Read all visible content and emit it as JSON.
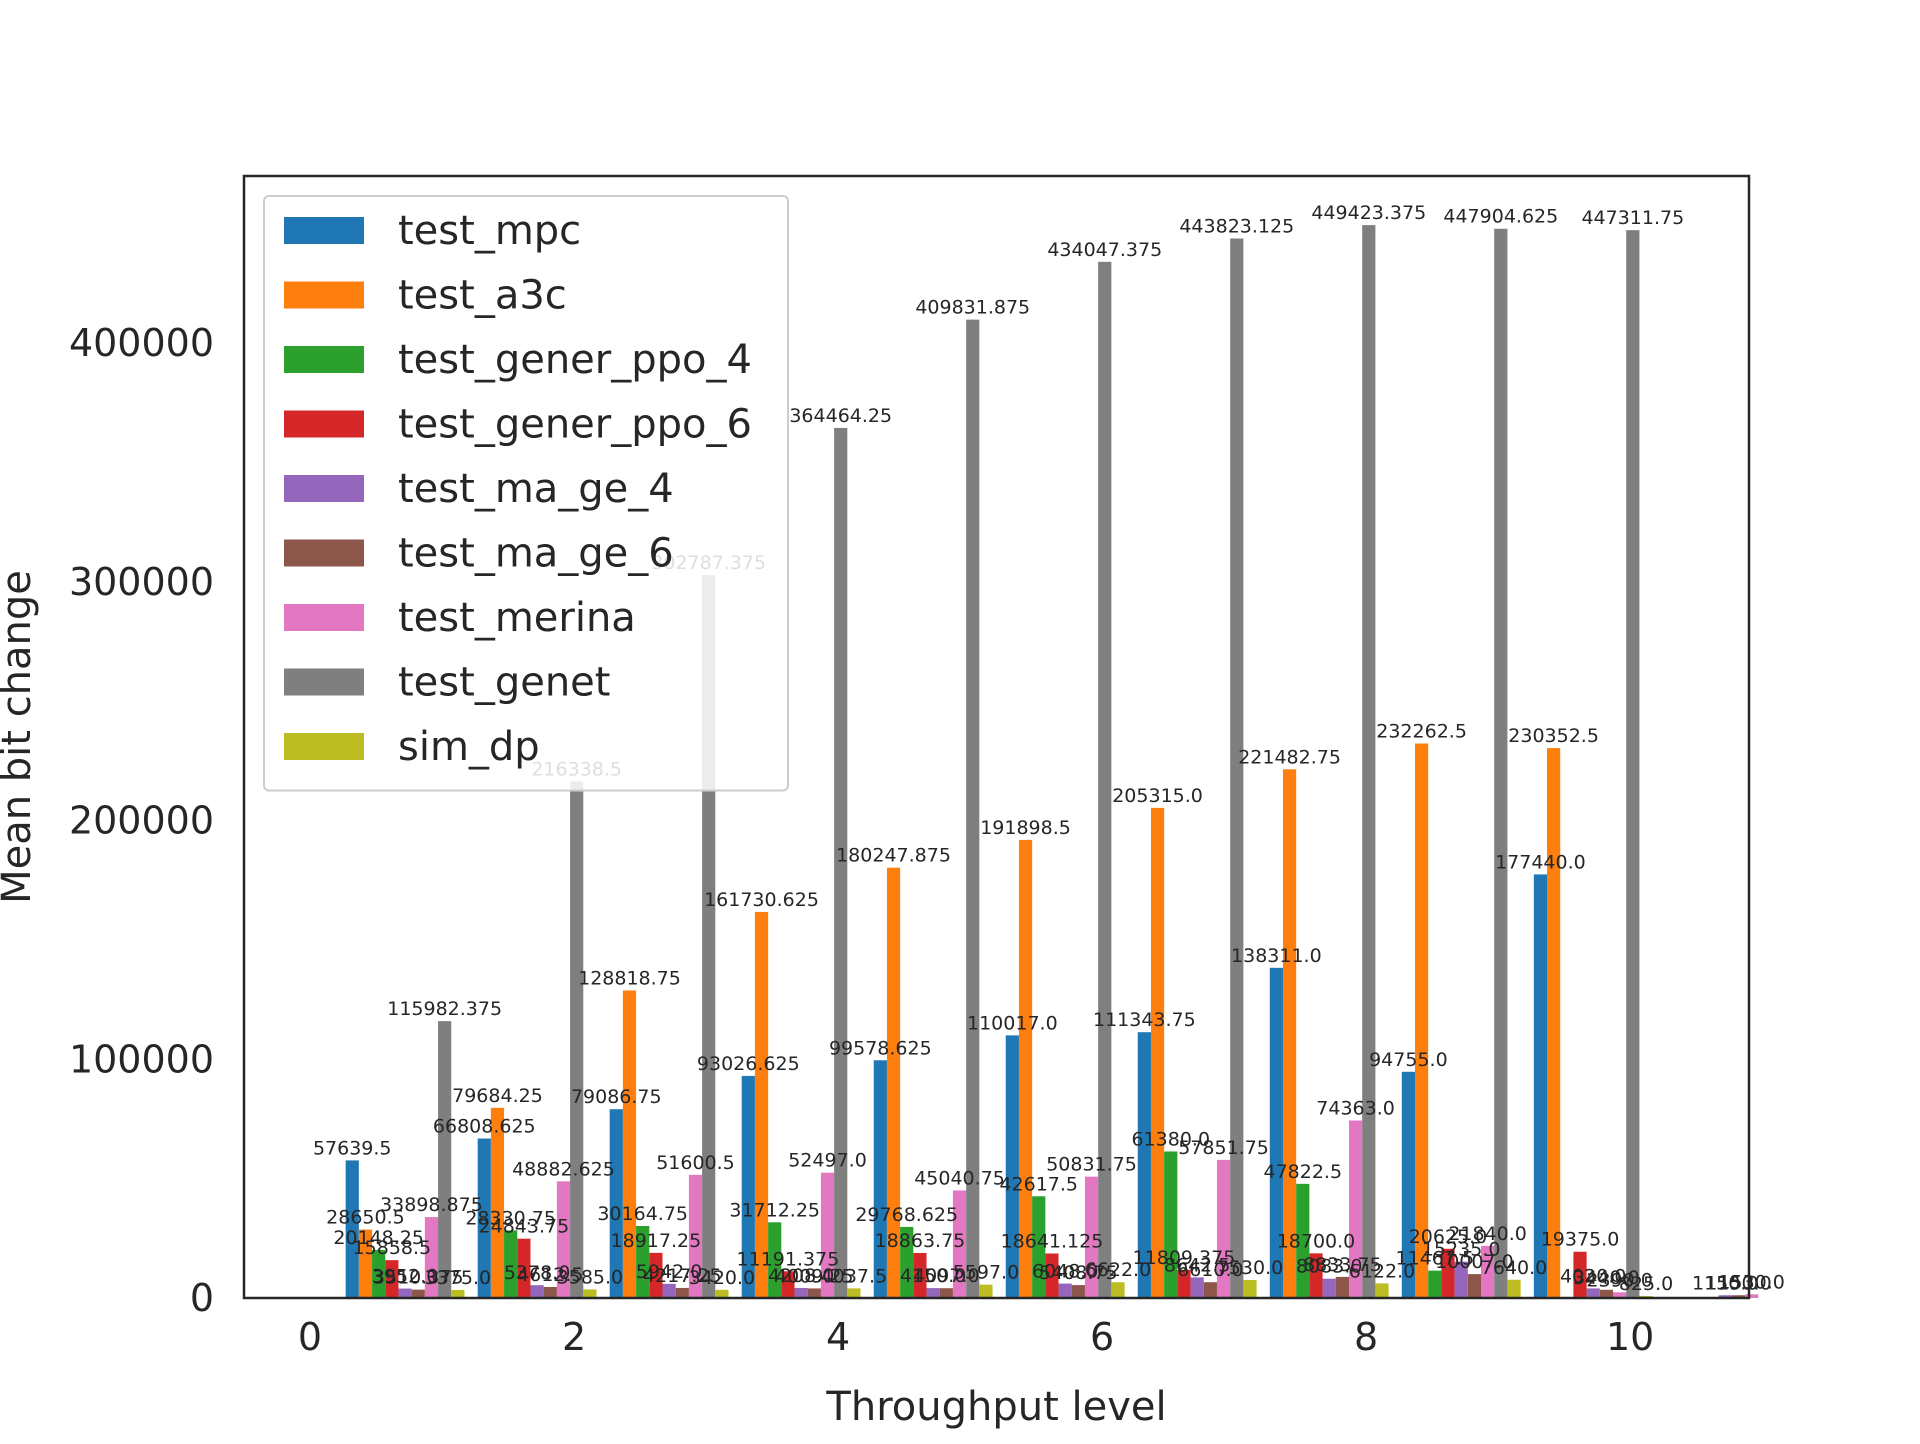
{
  "chart_data": {
    "type": "bar",
    "xlabel": "Throughput level",
    "ylabel": "Mean bit change",
    "xlim": [
      -0.5,
      10.9
    ],
    "ylim": [
      0,
      470000
    ],
    "x_ticks": [
      0,
      2,
      4,
      6,
      8,
      10
    ],
    "y_ticks": [
      0,
      100000,
      200000,
      300000,
      400000
    ],
    "grid": false,
    "legend_position": "top-left",
    "bar_width": 0.1,
    "first_group_x": 0.32,
    "group_spacing": 1.0,
    "series": [
      {
        "name": "test_mpc",
        "color": "#1f77b4",
        "values": [
          57639.5,
          66808.625,
          79086.75,
          93026.625,
          99578.625,
          110017.0,
          111343.75,
          138311.0,
          94755.0,
          177440.0,
          null
        ],
        "labels": [
          "57639.5",
          "66808.625",
          "79086.75",
          "93026.625",
          "99578.625",
          "110017.0",
          "111343.75",
          "138311.0",
          "94755.0",
          "177440.0",
          ""
        ]
      },
      {
        "name": "test_a3c",
        "color": "#ff7f0e",
        "values": [
          28650.5,
          79684.25,
          128818.75,
          161730.625,
          180247.875,
          191898.5,
          205315.0,
          221482.75,
          232262.5,
          230352.5,
          null
        ],
        "labels": [
          "28650.5",
          "79684.25",
          "128818.75",
          "161730.625",
          "180247.875",
          "191898.5",
          "205315.0",
          "221482.75",
          "232262.5",
          "230352.5",
          ""
        ]
      },
      {
        "name": "test_gener_ppo_4",
        "color": "#2ca02c",
        "values": [
          20148.25,
          28330.75,
          30164.75,
          31712.25,
          29768.625,
          42617.5,
          61380.0,
          47822.5,
          11467.5,
          null,
          null
        ],
        "labels": [
          "20148.25",
          "28330.75",
          "30164.75",
          "31712.25",
          "29768.625",
          "42617.5",
          "61380.0",
          "47822.5",
          "11467.5",
          "",
          ""
        ]
      },
      {
        "name": "test_gener_ppo_6",
        "color": "#d62728",
        "values": [
          15858.5,
          24843.75,
          18917.25,
          11191.375,
          18863.75,
          18641.125,
          11809.375,
          18700.0,
          20625.0,
          19375.0,
          null
        ],
        "labels": [
          "15858.5",
          "24843.75",
          "18917.25",
          "11191.375",
          "18863.75",
          "18641.125",
          "11809.375",
          "18700.0",
          "20625.0",
          "19375.0",
          ""
        ]
      },
      {
        "name": "test_ma_ge_4",
        "color": "#9467bd",
        "values": [
          3952.0,
          5378.0,
          5942.0,
          4208.0,
          4150.0,
          6048.0,
          8642.5,
          8083.0,
          15235.0,
          4020.0,
          1150.0
        ],
        "labels": [
          "3952.0",
          "5378.0",
          "5942.0",
          "4208.0",
          "4150.0",
          "6048.0",
          "8642.5",
          "8083.0",
          "15235.0",
          "4020.0",
          "1150.0"
        ]
      },
      {
        "name": "test_ma_ge_6",
        "color": "#8c564b",
        "values": [
          3510.375,
          4612.5,
          4217.25,
          4009.25,
          4097.0,
          5408.75,
          6610.0,
          8833.75,
          10007.0,
          3440.0,
          1150.0
        ],
        "labels": [
          "3510.375",
          "4612.5",
          "4217.25",
          "4009.25",
          "4097.0",
          "5408.75",
          "6610.0",
          "8833.75",
          "10007.0",
          "3440.0",
          "1150.0"
        ]
      },
      {
        "name": "test_merina",
        "color": "#e377c2",
        "values": [
          33898.875,
          48882.625,
          51600.5,
          52497.0,
          45040.75,
          50831.75,
          57851.75,
          74363.0,
          21840.0,
          2390.0,
          1530.0
        ],
        "labels": [
          "33898.875",
          "48882.625",
          "51600.5",
          "52497.0",
          "45040.75",
          "50831.75",
          "57851.75",
          "74363.0",
          "21840.0",
          "2390.0",
          "1530.0"
        ]
      },
      {
        "name": "test_genet",
        "color": "#7f7f7f",
        "values": [
          115982.375,
          216338.5,
          302787.375,
          364464.25,
          409831.875,
          434047.375,
          443823.125,
          449423.375,
          447904.625,
          447311.75,
          null
        ],
        "labels": [
          "115982.375",
          "216338.5",
          "302787.375",
          "364464.25",
          "409831.875",
          "434047.375",
          "443823.125",
          "449423.375",
          "447904.625",
          "447311.75",
          ""
        ]
      },
      {
        "name": "sim_dp",
        "color": "#bcbd22",
        "values": [
          3375.0,
          3585.0,
          3420.0,
          4037.5,
          5597.0,
          6622.0,
          7530.0,
          6122.0,
          7640.0,
          825.0,
          null
        ],
        "labels": [
          "3375.0",
          "3585.0",
          "3420.0",
          "4037.5",
          "5597.0",
          "6622.0",
          "7530.0",
          "6122.0",
          "7640.0",
          "825.0",
          ""
        ]
      }
    ]
  }
}
